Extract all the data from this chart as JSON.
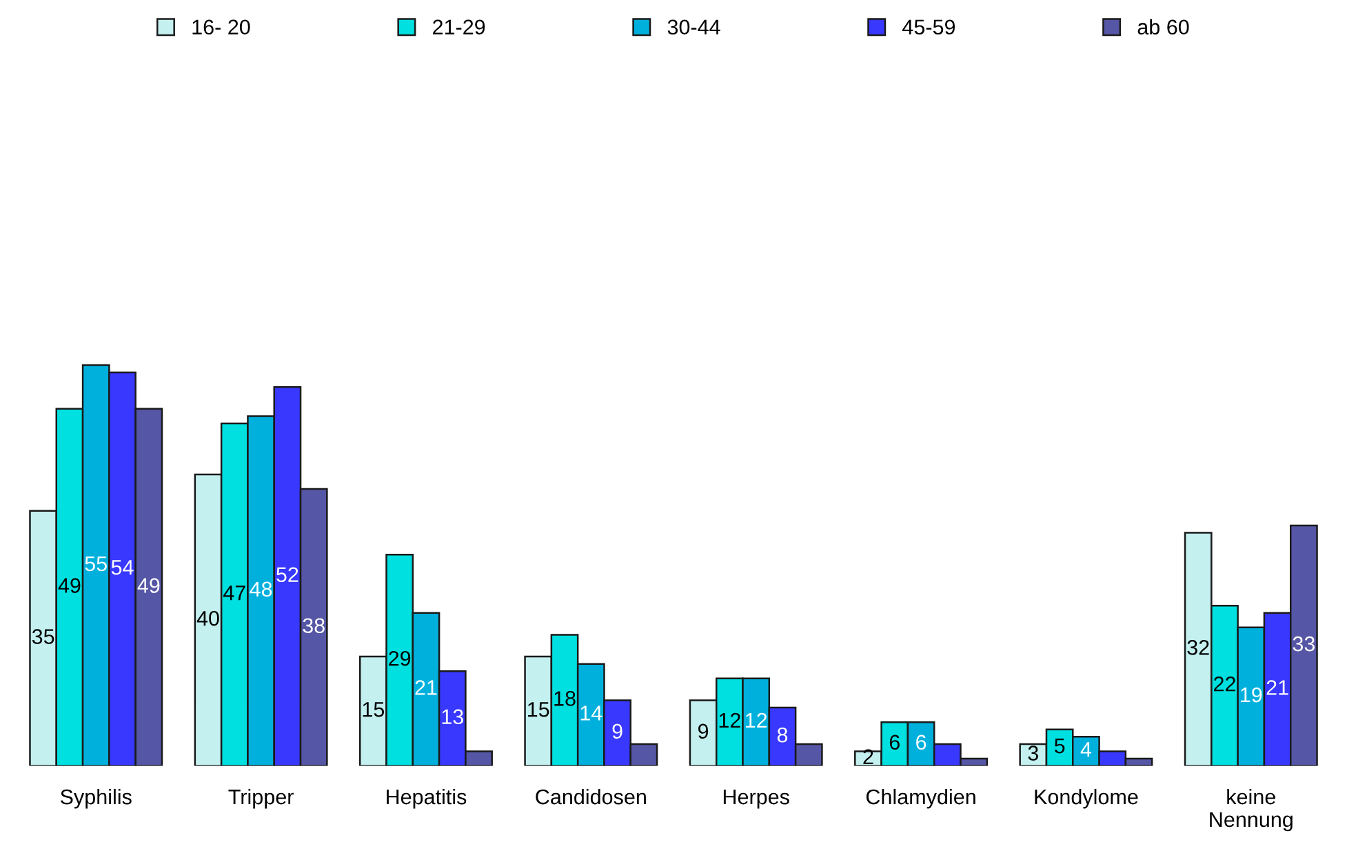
{
  "chart_data": {
    "type": "bar",
    "categories": [
      "Syphilis",
      "Tripper",
      "Hepatitis",
      "Candidosen",
      "Herpes",
      "Chlamydien",
      "Kondylome",
      "keine\nNennung"
    ],
    "series": [
      {
        "name": "16- 20",
        "color": "#c4f0f0",
        "values": [
          35,
          40,
          15,
          15,
          9,
          2,
          3,
          32
        ],
        "value_labels": [
          "35",
          "40",
          "15",
          "15",
          "9",
          "2",
          "3",
          "32"
        ]
      },
      {
        "name": "21-29",
        "color": "#00e0e0",
        "values": [
          49,
          47,
          29,
          18,
          12,
          6,
          5,
          22
        ],
        "value_labels": [
          "49",
          "47",
          "29",
          "18",
          "12",
          "6",
          "5",
          "22"
        ]
      },
      {
        "name": "30-44",
        "color": "#00b0dc",
        "values": [
          55,
          48,
          21,
          14,
          12,
          6,
          4,
          19
        ],
        "value_labels": [
          "55",
          "48",
          "21",
          "14",
          "12",
          "6",
          "4",
          "19"
        ]
      },
      {
        "name": "45-59",
        "color": "#3838ff",
        "values": [
          54,
          52,
          13,
          9,
          8,
          3,
          2,
          21
        ],
        "value_labels": [
          "54",
          "52",
          "13",
          "9",
          "8",
          null,
          null,
          "21"
        ]
      },
      {
        "name": "ab 60",
        "color": "#5656a6",
        "values": [
          49,
          38,
          2,
          3,
          3,
          1,
          1,
          33
        ],
        "value_labels": [
          "49",
          "38",
          null,
          null,
          null,
          null,
          null,
          "33"
        ]
      }
    ],
    "legend": "top",
    "grid": false
  }
}
